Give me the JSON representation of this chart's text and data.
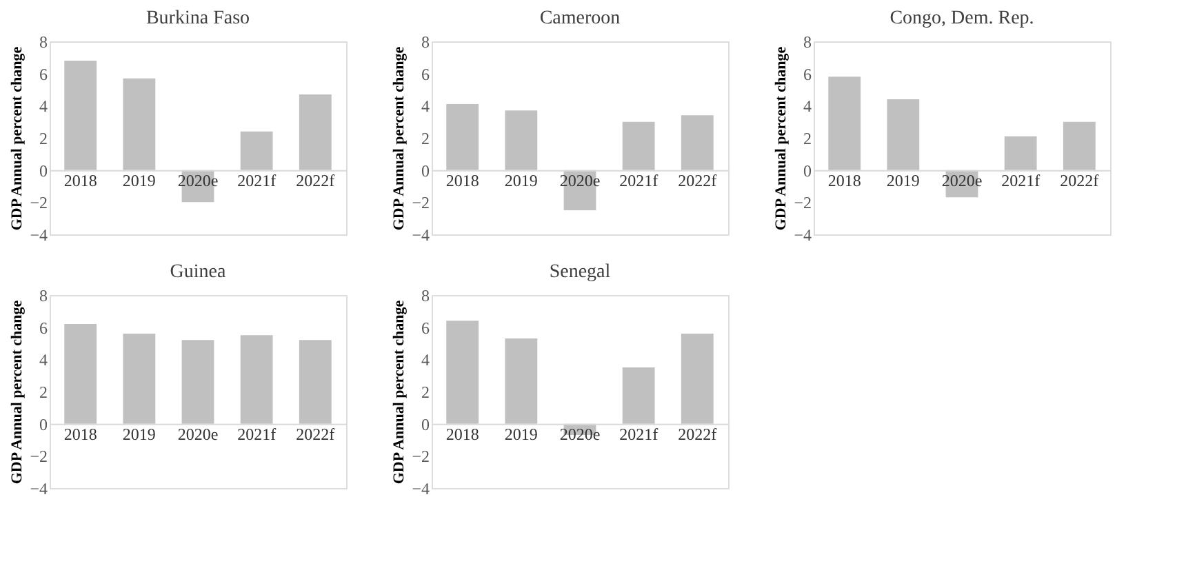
{
  "chart_data": [
    {
      "type": "bar",
      "title": "Burkina Faso",
      "ylabel": "GDP Annual percent change",
      "categories": [
        "2018",
        "2019",
        "2020e",
        "2021f",
        "2022f"
      ],
      "values": [
        6.8,
        5.7,
        -2.0,
        2.4,
        4.7
      ],
      "color": "#c0c0c0",
      "ylim": [
        -4,
        8
      ],
      "yticks": [
        -4,
        -2,
        0,
        2,
        4,
        6,
        8
      ],
      "grid": false
    },
    {
      "type": "bar",
      "title": "Cameroon",
      "ylabel": "GDP Annual percent change",
      "categories": [
        "2018",
        "2019",
        "2020e",
        "2021f",
        "2022f"
      ],
      "values": [
        4.1,
        3.7,
        -2.5,
        3.0,
        3.4
      ],
      "color": "#c0c0c0",
      "ylim": [
        -4,
        8
      ],
      "yticks": [
        -4,
        -2,
        0,
        2,
        4,
        6,
        8
      ],
      "grid": false
    },
    {
      "type": "bar",
      "title": "Congo, Dem. Rep.",
      "ylabel": "GDP Annual percent change",
      "categories": [
        "2018",
        "2019",
        "2020e",
        "2021f",
        "2022f"
      ],
      "values": [
        5.8,
        4.4,
        -1.7,
        2.1,
        3.0
      ],
      "color": "#c0c0c0",
      "ylim": [
        -4,
        8
      ],
      "yticks": [
        -4,
        -2,
        0,
        2,
        4,
        6,
        8
      ],
      "grid": false
    },
    {
      "type": "bar",
      "title": "Guinea",
      "ylabel": "GDP Annual percent change",
      "categories": [
        "2018",
        "2019",
        "2020e",
        "2021f",
        "2022f"
      ],
      "values": [
        6.2,
        5.6,
        5.2,
        5.5,
        5.2
      ],
      "color": "#c0c0c0",
      "ylim": [
        -4,
        8
      ],
      "yticks": [
        -4,
        -2,
        0,
        2,
        4,
        6,
        8
      ],
      "grid": false
    },
    {
      "type": "bar",
      "title": "Senegal",
      "ylabel": "GDP Annual percent change",
      "categories": [
        "2018",
        "2019",
        "2020e",
        "2021f",
        "2022f"
      ],
      "values": [
        6.4,
        5.3,
        -0.7,
        3.5,
        5.6
      ],
      "color": "#c0c0c0",
      "ylim": [
        -4,
        8
      ],
      "yticks": [
        -4,
        -2,
        0,
        2,
        4,
        6,
        8
      ],
      "grid": false
    }
  ]
}
